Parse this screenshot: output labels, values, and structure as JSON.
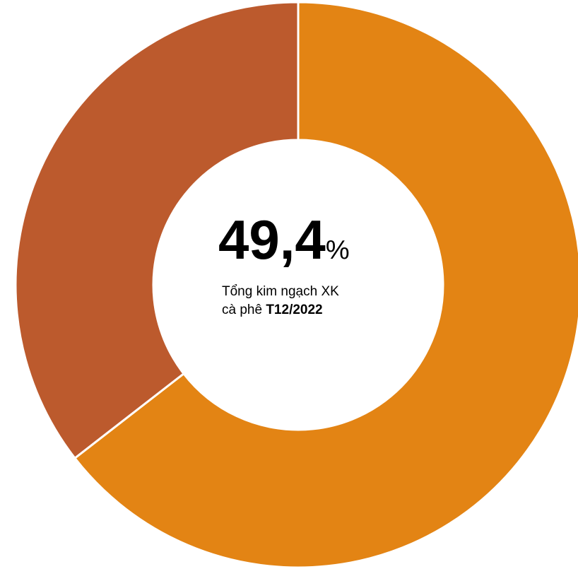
{
  "chart_data": {
    "type": "pie",
    "style": "donut",
    "slices": [
      {
        "value": 64.5,
        "color": "#E38414"
      },
      {
        "value": 35.5,
        "color": "#BC5A2D"
      }
    ],
    "center_label": {
      "value": "49,4",
      "unit": "%",
      "caption_line1": "Tổng kim ngạch XK",
      "caption_line2_prefix": "cà phê ",
      "caption_line2_bold": "T12/2022"
    },
    "legend": "none"
  }
}
